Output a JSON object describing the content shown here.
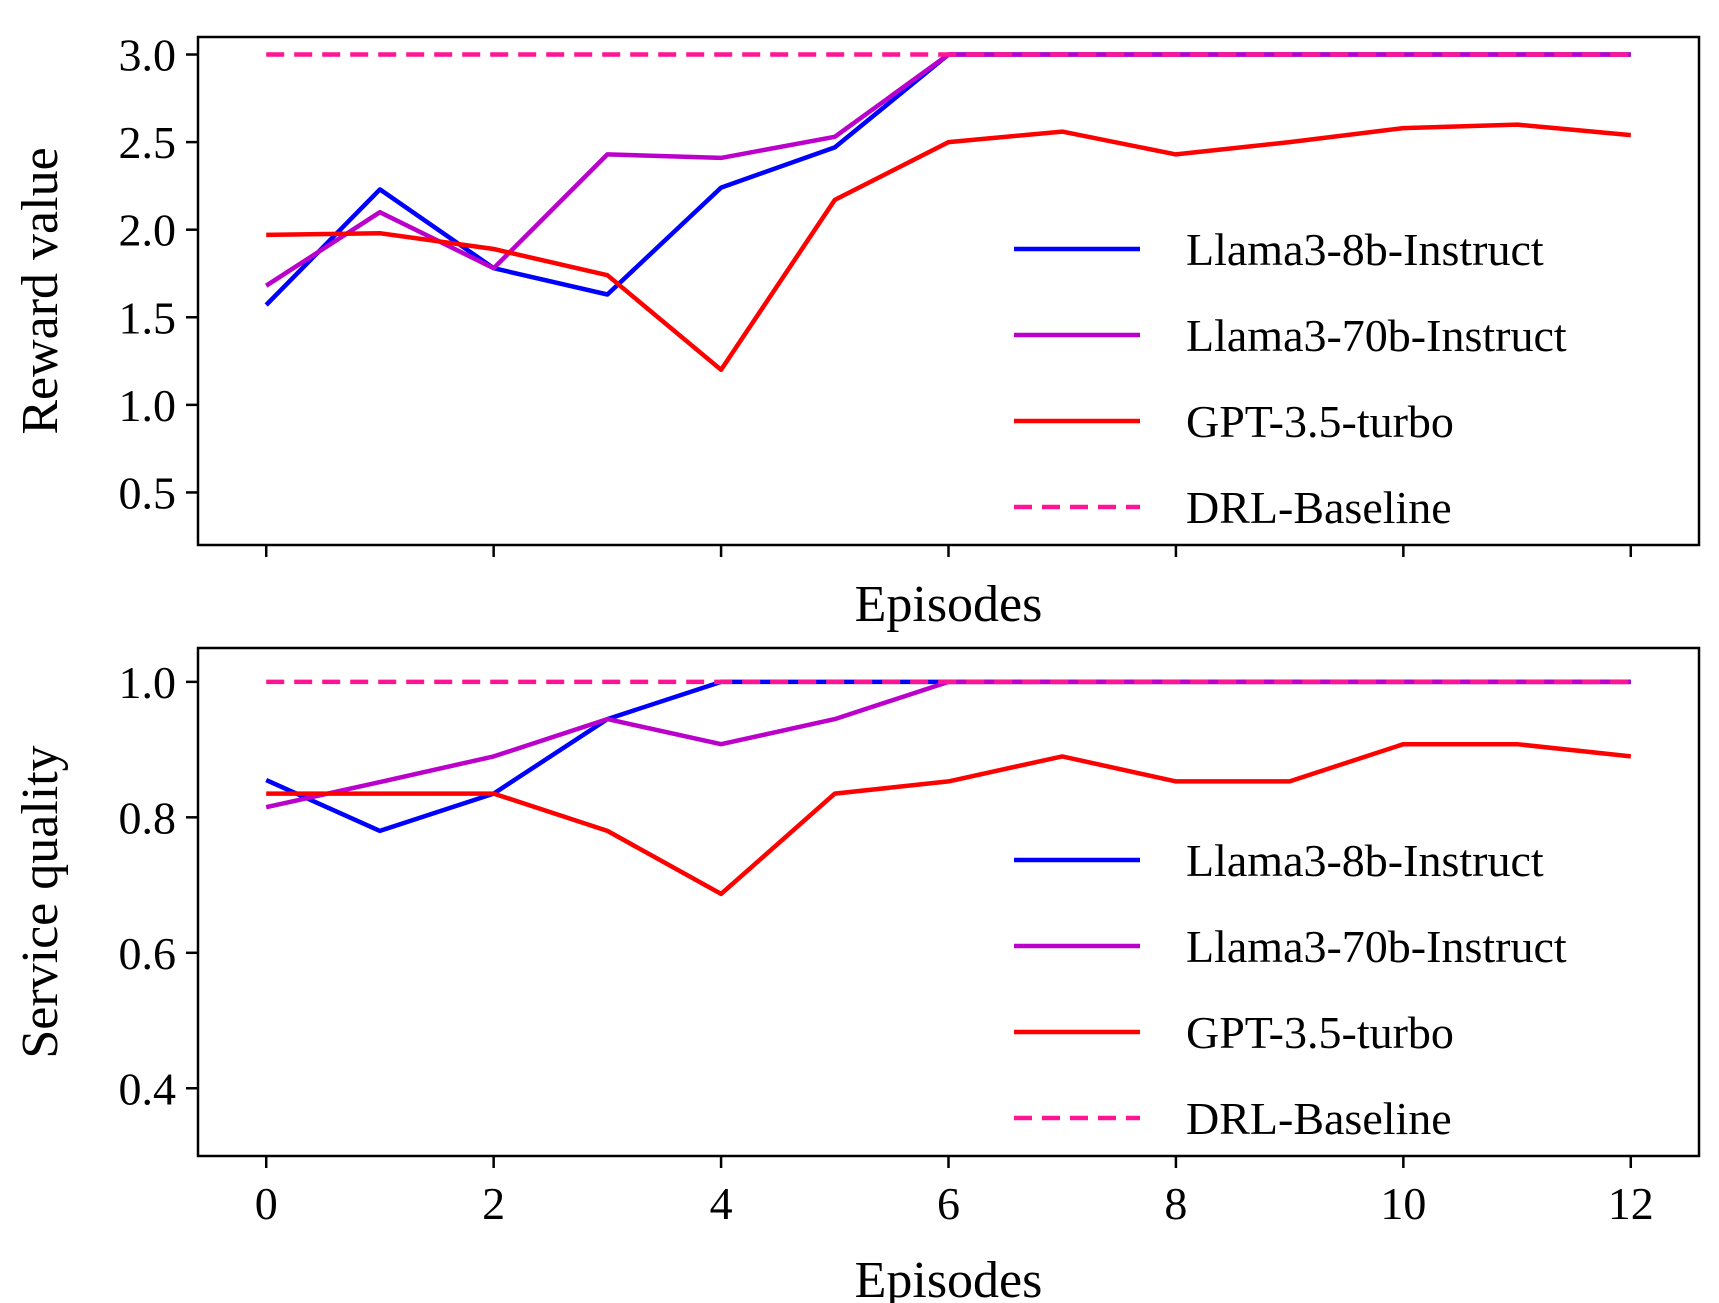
{
  "chart_data": [
    {
      "type": "line",
      "xlabel": "Episodes",
      "ylabel": "Reward value",
      "x": [
        0,
        1,
        2,
        3,
        4,
        5,
        6,
        7,
        8,
        9,
        10,
        11,
        12
      ],
      "xlim": [
        -0.6,
        12.6
      ],
      "ylim": [
        0.2,
        3.1
      ],
      "xticks": [
        0,
        2,
        4,
        6,
        8,
        10,
        12
      ],
      "show_xtick_labels": false,
      "yticks": [
        0.5,
        1.0,
        1.5,
        2.0,
        2.5,
        3.0
      ],
      "ytick_labels": [
        "0.5",
        "1.0",
        "1.5",
        "2.0",
        "2.5",
        "3.0"
      ],
      "grid": false,
      "legend_position": "lower-right",
      "series": [
        {
          "name": "Llama3-8b-Instruct",
          "color": "#0000ff",
          "dashed": false,
          "values": [
            1.57,
            2.23,
            1.78,
            1.63,
            2.24,
            2.47,
            3.0,
            3.0,
            3.0,
            3.0,
            3.0,
            3.0,
            3.0
          ]
        },
        {
          "name": "Llama3-70b-Instruct",
          "color": "#bb00cc",
          "dashed": false,
          "values": [
            1.68,
            2.1,
            1.78,
            2.43,
            2.41,
            2.53,
            3.0,
            3.0,
            3.0,
            3.0,
            3.0,
            3.0,
            3.0
          ]
        },
        {
          "name": "GPT-3.5-turbo",
          "color": "#ff0000",
          "dashed": false,
          "values": [
            1.97,
            1.98,
            1.89,
            1.74,
            1.2,
            2.17,
            2.5,
            2.56,
            2.43,
            2.5,
            2.58,
            2.6,
            2.54
          ]
        },
        {
          "name": "DRL-Baseline",
          "color": "#ff1493",
          "dashed": true,
          "values": [
            3.0,
            3.0,
            3.0,
            3.0,
            3.0,
            3.0,
            3.0,
            3.0,
            3.0,
            3.0,
            3.0,
            3.0,
            3.0
          ]
        }
      ]
    },
    {
      "type": "line",
      "xlabel": "Episodes",
      "ylabel": "Service quality",
      "x": [
        0,
        1,
        2,
        3,
        4,
        5,
        6,
        7,
        8,
        9,
        10,
        11,
        12
      ],
      "xlim": [
        -0.6,
        12.6
      ],
      "ylim": [
        0.3,
        1.05
      ],
      "xticks": [
        0,
        2,
        4,
        6,
        8,
        10,
        12
      ],
      "xtick_labels": [
        "0",
        "2",
        "4",
        "6",
        "8",
        "10",
        "12"
      ],
      "show_xtick_labels": true,
      "yticks": [
        0.4,
        0.6,
        0.8,
        1.0
      ],
      "ytick_labels": [
        "0.4",
        "0.6",
        "0.8",
        "1.0"
      ],
      "grid": false,
      "legend_position": "lower-right",
      "series": [
        {
          "name": "Llama3-8b-Instruct",
          "color": "#0000ff",
          "dashed": false,
          "values": [
            0.855,
            0.78,
            0.835,
            0.945,
            1.0,
            1.0,
            1.0,
            1.0,
            1.0,
            1.0,
            1.0,
            1.0,
            1.0
          ]
        },
        {
          "name": "Llama3-70b-Instruct",
          "color": "#bb00cc",
          "dashed": false,
          "values": [
            0.815,
            0.852,
            0.89,
            0.945,
            0.908,
            0.945,
            1.0,
            1.0,
            1.0,
            1.0,
            1.0,
            1.0,
            1.0
          ]
        },
        {
          "name": "GPT-3.5-turbo",
          "color": "#ff0000",
          "dashed": false,
          "values": [
            0.835,
            0.835,
            0.835,
            0.78,
            0.687,
            0.835,
            0.853,
            0.89,
            0.853,
            0.853,
            0.908,
            0.908,
            0.89
          ]
        },
        {
          "name": "DRL-Baseline",
          "color": "#ff1493",
          "dashed": true,
          "values": [
            1.0,
            1.0,
            1.0,
            1.0,
            1.0,
            1.0,
            1.0,
            1.0,
            1.0,
            1.0,
            1.0,
            1.0,
            1.0
          ]
        }
      ]
    }
  ]
}
